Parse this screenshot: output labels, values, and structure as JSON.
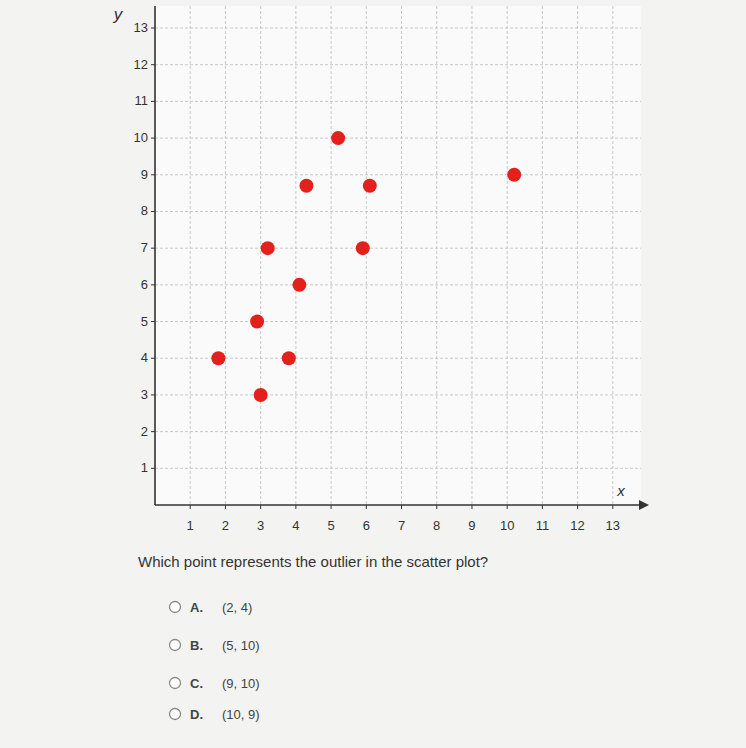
{
  "chart_data": {
    "type": "scatter",
    "x_label": "x",
    "y_label": "y",
    "x": [
      1.8,
      2.9,
      3,
      3.8,
      3.2,
      4.1,
      4.3,
      5.2,
      6.1,
      5.9,
      10.2
    ],
    "values": [
      4,
      5,
      3,
      4,
      7,
      6,
      8.7,
      10,
      8.7,
      7,
      9
    ],
    "color": "#e3201b",
    "marker": "circle",
    "xlim": [
      0,
      13.8
    ],
    "ylim": [
      0,
      13.6
    ],
    "xticks": [
      1,
      2,
      3,
      4,
      5,
      6,
      7,
      8,
      9,
      10,
      11,
      12,
      13
    ],
    "yticks": [
      1,
      2,
      3,
      4,
      5,
      6,
      7,
      8,
      9,
      10,
      11,
      12,
      13
    ],
    "grid": true
  },
  "question": "Which point represents the outlier in the scatter plot?",
  "options": [
    {
      "letter": "A.",
      "text": "(2, 4)"
    },
    {
      "letter": "B.",
      "text": "(5, 10)"
    },
    {
      "letter": "C.",
      "text": "(9, 10)"
    },
    {
      "letter": "D.",
      "text": "(10, 9)"
    }
  ]
}
